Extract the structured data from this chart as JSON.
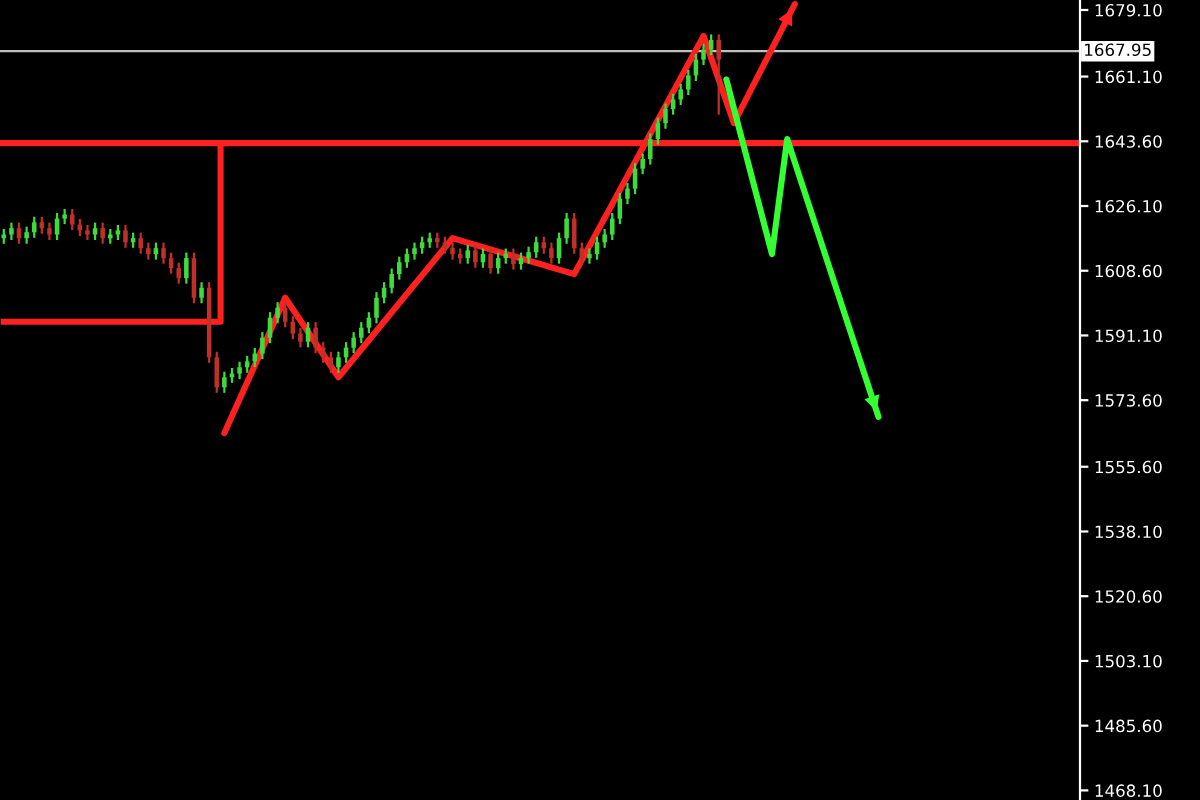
{
  "chart_data": {
    "type": "candlestick",
    "categories": [
      null,
      null,
      null,
      null,
      null,
      null,
      null,
      null,
      null,
      null,
      null,
      null,
      null,
      null,
      null,
      null,
      null,
      null,
      null,
      null,
      null,
      null,
      null,
      null,
      null,
      null,
      null,
      null,
      null,
      null,
      null,
      null,
      null,
      null,
      null,
      null,
      null,
      null,
      null,
      null,
      null,
      null,
      null,
      null,
      null,
      null,
      null,
      null,
      null,
      null,
      null,
      null,
      null,
      null,
      null,
      null,
      null,
      null,
      null,
      null,
      null,
      null,
      null,
      null,
      null,
      null,
      null,
      null,
      null,
      null,
      null,
      null,
      null,
      null,
      null,
      null,
      null,
      null,
      null,
      null,
      null,
      null,
      null,
      null,
      null,
      null,
      null,
      null,
      null,
      null,
      null,
      null,
      null,
      null,
      null,
      null,
      null,
      null,
      null,
      null,
      null,
      null,
      null,
      null,
      null,
      null,
      null,
      null,
      null,
      null,
      null,
      null,
      null,
      null,
      null,
      null,
      null,
      null,
      null,
      null,
      null,
      null,
      null,
      null,
      null,
      null,
      null,
      null,
      null,
      null,
      null,
      null,
      null,
      null,
      null,
      null,
      null,
      null,
      null,
      null,
      null,
      null
    ],
    "ohlc": [
      [
        1617.4,
        1619.9,
        1615.9,
        1618.4
      ],
      [
        1618.4,
        1621.6,
        1616.9,
        1620.1
      ],
      [
        1620.1,
        1621.6,
        1615.9,
        1617.4
      ],
      [
        1617.4,
        1620.5,
        1615.9,
        1619.0
      ],
      [
        1619.0,
        1623.2,
        1617.5,
        1621.7
      ],
      [
        1621.7,
        1623.2,
        1618.6,
        1620.1
      ],
      [
        1620.1,
        1621.6,
        1616.9,
        1618.4
      ],
      [
        1618.4,
        1624.2,
        1616.9,
        1622.7
      ],
      [
        1622.7,
        1625.3,
        1621.2,
        1623.8
      ],
      [
        1623.8,
        1625.3,
        1619.6,
        1621.1
      ],
      [
        1621.1,
        1622.6,
        1618.0,
        1619.5
      ],
      [
        1619.5,
        1621.0,
        1616.9,
        1618.4
      ],
      [
        1618.4,
        1621.6,
        1616.9,
        1620.1
      ],
      [
        1620.1,
        1621.6,
        1615.9,
        1617.4
      ],
      [
        1617.4,
        1619.9,
        1615.9,
        1618.4
      ],
      [
        1618.4,
        1621.0,
        1616.9,
        1619.5
      ],
      [
        1619.5,
        1621.0,
        1614.8,
        1616.3
      ],
      [
        1616.3,
        1618.9,
        1614.8,
        1617.4
      ],
      [
        1617.4,
        1618.9,
        1613.2,
        1614.7
      ],
      [
        1614.7,
        1616.2,
        1611.6,
        1613.1
      ],
      [
        1613.1,
        1616.2,
        1611.6,
        1614.7
      ],
      [
        1614.7,
        1616.2,
        1610.5,
        1612.0
      ],
      [
        1612.0,
        1613.5,
        1607.8,
        1609.3
      ],
      [
        1609.3,
        1610.8,
        1605.1,
        1606.6
      ],
      [
        1606.6,
        1613.5,
        1605.1,
        1612.0
      ],
      [
        1612.0,
        1613.5,
        1599.8,
        1601.3
      ],
      [
        1601.3,
        1605.5,
        1599.8,
        1604.0
      ],
      [
        1604.0,
        1605.5,
        1583.7,
        1585.2
      ],
      [
        1585.2,
        1586.7,
        1575.6,
        1577.1
      ],
      [
        1577.1,
        1581.3,
        1575.6,
        1579.8
      ],
      [
        1579.8,
        1582.3,
        1578.3,
        1580.8
      ],
      [
        1580.8,
        1584.0,
        1579.3,
        1582.5
      ],
      [
        1582.5,
        1585.6,
        1581.0,
        1584.1
      ],
      [
        1584.1,
        1587.7,
        1582.6,
        1586.2
      ],
      [
        1586.2,
        1592.0,
        1584.7,
        1590.5
      ],
      [
        1590.5,
        1597.4,
        1589.0,
        1595.9
      ],
      [
        1595.9,
        1600.1,
        1594.4,
        1598.6
      ],
      [
        1598.6,
        1600.1,
        1593.3,
        1594.8
      ],
      [
        1594.8,
        1596.3,
        1590.1,
        1591.6
      ],
      [
        1591.6,
        1593.1,
        1587.9,
        1589.4
      ],
      [
        1589.4,
        1594.7,
        1587.9,
        1593.2
      ],
      [
        1593.2,
        1594.7,
        1586.3,
        1587.8
      ],
      [
        1587.8,
        1589.3,
        1583.7,
        1585.2
      ],
      [
        1585.2,
        1586.7,
        1581.0,
        1582.5
      ],
      [
        1582.5,
        1586.7,
        1581.0,
        1585.2
      ],
      [
        1585.2,
        1589.3,
        1583.7,
        1587.8
      ],
      [
        1587.8,
        1592.0,
        1586.3,
        1590.5
      ],
      [
        1590.5,
        1594.7,
        1589.0,
        1593.2
      ],
      [
        1593.2,
        1597.4,
        1591.7,
        1595.9
      ],
      [
        1595.9,
        1602.8,
        1594.4,
        1601.3
      ],
      [
        1601.3,
        1605.5,
        1599.8,
        1604.0
      ],
      [
        1604.0,
        1609.2,
        1602.5,
        1607.7
      ],
      [
        1607.7,
        1612.4,
        1606.2,
        1610.9
      ],
      [
        1610.9,
        1614.6,
        1609.4,
        1613.1
      ],
      [
        1613.1,
        1616.2,
        1611.6,
        1614.7
      ],
      [
        1614.7,
        1617.8,
        1613.2,
        1616.3
      ],
      [
        1616.3,
        1618.9,
        1614.8,
        1617.4
      ],
      [
        1617.4,
        1618.9,
        1614.8,
        1616.3
      ],
      [
        1616.3,
        1617.8,
        1613.2,
        1614.7
      ],
      [
        1614.7,
        1616.2,
        1611.6,
        1613.1
      ],
      [
        1613.1,
        1614.6,
        1610.5,
        1612.0
      ],
      [
        1612.0,
        1615.6,
        1610.5,
        1614.1
      ],
      [
        1614.1,
        1615.6,
        1609.4,
        1610.9
      ],
      [
        1610.9,
        1614.6,
        1609.4,
        1613.1
      ],
      [
        1613.1,
        1614.6,
        1607.8,
        1609.3
      ],
      [
        1609.3,
        1613.5,
        1607.8,
        1612.0
      ],
      [
        1612.0,
        1614.6,
        1610.5,
        1613.1
      ],
      [
        1613.1,
        1614.6,
        1608.9,
        1610.4
      ],
      [
        1610.4,
        1613.5,
        1608.9,
        1612.0
      ],
      [
        1612.0,
        1615.1,
        1610.5,
        1613.6
      ],
      [
        1613.6,
        1617.8,
        1612.1,
        1616.3
      ],
      [
        1616.3,
        1617.8,
        1613.2,
        1614.7
      ],
      [
        1614.7,
        1616.2,
        1610.5,
        1612.0
      ],
      [
        1612.0,
        1618.9,
        1610.5,
        1617.4
      ],
      [
        1617.4,
        1624.2,
        1615.9,
        1622.7
      ],
      [
        1622.7,
        1624.2,
        1613.2,
        1614.7
      ],
      [
        1614.7,
        1616.2,
        1610.5,
        1612.0
      ],
      [
        1612.0,
        1614.6,
        1610.5,
        1613.1
      ],
      [
        1613.1,
        1617.8,
        1611.6,
        1616.3
      ],
      [
        1616.3,
        1619.9,
        1614.8,
        1618.4
      ],
      [
        1618.4,
        1624.2,
        1616.9,
        1622.7
      ],
      [
        1622.7,
        1629.6,
        1621.2,
        1628.1
      ],
      [
        1628.1,
        1632.3,
        1626.6,
        1630.8
      ],
      [
        1630.8,
        1637.7,
        1629.3,
        1636.2
      ],
      [
        1636.2,
        1640.3,
        1634.7,
        1638.8
      ],
      [
        1638.8,
        1645.7,
        1637.3,
        1644.2
      ],
      [
        1644.2,
        1650.0,
        1642.7,
        1648.5
      ],
      [
        1648.5,
        1653.8,
        1647.0,
        1652.3
      ],
      [
        1652.3,
        1656.4,
        1650.8,
        1654.9
      ],
      [
        1654.9,
        1659.1,
        1653.4,
        1657.6
      ],
      [
        1657.6,
        1662.9,
        1656.1,
        1661.4
      ],
      [
        1661.4,
        1667.2,
        1659.9,
        1665.7
      ],
      [
        1665.7,
        1669.9,
        1664.2,
        1668.4
      ],
      [
        1668.4,
        1672.5,
        1666.9,
        1671.0
      ],
      [
        1671.0,
        1672.5,
        1650.8,
        1665.7
      ],
      null,
      null,
      null,
      null,
      null,
      null,
      null,
      null,
      null,
      null,
      null,
      null,
      null,
      null,
      null,
      null,
      null,
      null,
      null,
      null,
      null,
      null,
      null,
      null,
      null,
      null,
      null,
      null,
      null,
      null,
      null,
      null,
      null,
      null,
      null,
      null,
      null,
      null,
      null,
      null,
      null,
      null,
      null,
      null,
      null,
      null,
      null
    ],
    "colors": [
      "#3ddc3d",
      "#3ddc3d",
      "#c0302a",
      "#3ddc3d",
      "#3ddc3d",
      "#c0302a",
      "#c0302a",
      "#3ddc3d",
      "#3ddc3d",
      "#c0302a",
      "#c0302a",
      "#c0302a",
      "#3ddc3d",
      "#c0302a",
      "#3ddc3d",
      "#3ddc3d",
      "#c0302a",
      "#3ddc3d",
      "#c0302a",
      "#c0302a",
      "#3ddc3d",
      "#c0302a",
      "#c0302a",
      "#c0302a",
      "#3ddc3d",
      "#c0302a",
      "#3ddc3d",
      "#c0302a",
      "#c0302a",
      "#3ddc3d",
      "#3ddc3d",
      "#3ddc3d",
      "#3ddc3d",
      "#3ddc3d",
      "#3ddc3d",
      "#3ddc3d",
      "#3ddc3d",
      "#c0302a",
      "#c0302a",
      "#c0302a",
      "#3ddc3d",
      "#c0302a",
      "#c0302a",
      "#c0302a",
      "#3ddc3d",
      "#3ddc3d",
      "#3ddc3d",
      "#3ddc3d",
      "#3ddc3d",
      "#3ddc3d",
      "#3ddc3d",
      "#3ddc3d",
      "#3ddc3d",
      "#3ddc3d",
      "#3ddc3d",
      "#3ddc3d",
      "#3ddc3d",
      "#c0302a",
      "#c0302a",
      "#c0302a",
      "#c0302a",
      "#3ddc3d",
      "#c0302a",
      "#3ddc3d",
      "#c0302a",
      "#3ddc3d",
      "#3ddc3d",
      "#c0302a",
      "#3ddc3d",
      "#3ddc3d",
      "#3ddc3d",
      "#c0302a",
      "#c0302a",
      "#3ddc3d",
      "#3ddc3d",
      "#c0302a",
      "#c0302a",
      "#3ddc3d",
      "#3ddc3d",
      "#3ddc3d",
      "#3ddc3d",
      "#3ddc3d",
      "#3ddc3d",
      "#3ddc3d",
      "#3ddc3d",
      "#3ddc3d",
      "#3ddc3d",
      "#3ddc3d",
      "#3ddc3d",
      "#3ddc3d",
      "#3ddc3d",
      "#3ddc3d",
      "#3ddc3d",
      "#3ddc3d",
      "#c0302a",
      null,
      null,
      null,
      null,
      null,
      null,
      null,
      null,
      null,
      null,
      null,
      null,
      null,
      null,
      null,
      null,
      null,
      null,
      null,
      null,
      null,
      null,
      null,
      null,
      null,
      null,
      null,
      null,
      null,
      null,
      null,
      null,
      null,
      null,
      null,
      null,
      null,
      null,
      null,
      null,
      null,
      null,
      null,
      null,
      null,
      null,
      null
    ],
    "series": [
      {
        "type": "step",
        "color": "#ff2020",
        "values": [
          1594.8,
          1594.8,
          1594.8,
          1594.8,
          1594.8,
          1594.8,
          1594.8,
          1594.8,
          1594.8,
          1594.8,
          1594.8,
          1594.8,
          1594.8,
          1594.8,
          1594.8,
          1594.8,
          1594.8,
          1594.8,
          1594.8,
          1594.8,
          1594.8,
          1594.8,
          1594.8,
          1594.8,
          1594.8,
          1594.8,
          1594.8,
          1594.8,
          1594.8,
          1643.1,
          null,
          null,
          null,
          null,
          null,
          null,
          null,
          null,
          null,
          null,
          null,
          null,
          null,
          null,
          null,
          null,
          null,
          null,
          null,
          null,
          null,
          null,
          null,
          null,
          null,
          null,
          null,
          null,
          null,
          null,
          null,
          null,
          null,
          null,
          null,
          null,
          null,
          null,
          null,
          null,
          null,
          null,
          null,
          null,
          null,
          null,
          null,
          null,
          null,
          null,
          null,
          null,
          null,
          null,
          null,
          null,
          null,
          null,
          null,
          null,
          null,
          null,
          null,
          null,
          null,
          null,
          null,
          null,
          null,
          null,
          null,
          null,
          null,
          null,
          null,
          null,
          null,
          null,
          null,
          null,
          null,
          null,
          null,
          null,
          null,
          null,
          null,
          null,
          null,
          null,
          null,
          null,
          null,
          null,
          null,
          null,
          null,
          null,
          null,
          null,
          null,
          null,
          null,
          null,
          null,
          null,
          null,
          null,
          null,
          null,
          null,
          null
        ]
      },
      {
        "type": "line",
        "color": "#ff2020",
        "values": [
          null,
          null,
          null,
          null,
          null,
          null,
          null,
          null,
          null,
          null,
          null,
          null,
          null,
          null,
          null,
          null,
          null,
          null,
          null,
          null,
          null,
          null,
          null,
          null,
          null,
          null,
          null,
          null,
          null,
          1564.7,
          null,
          null,
          null,
          null,
          null,
          null,
          null,
          1601.3,
          null,
          null,
          null,
          null,
          null,
          null,
          1579.8,
          null,
          null,
          null,
          null,
          null,
          null,
          null,
          null,
          null,
          null,
          null,
          null,
          null,
          null,
          1617.4,
          null,
          null,
          null,
          null,
          null,
          null,
          null,
          null,
          null,
          null,
          null,
          null,
          null,
          null,
          null,
          1607.7,
          null,
          null,
          null,
          null,
          null,
          null,
          null,
          null,
          null,
          null,
          null,
          null,
          null,
          null,
          null,
          null,
          1672.1,
          null,
          null,
          null,
          1648.5,
          null,
          null,
          null,
          null,
          null,
          null,
          null,
          1680.7,
          null,
          null,
          null,
          null,
          null,
          null,
          null,
          null,
          null,
          null,
          null,
          null,
          null,
          null,
          null,
          null,
          null,
          null,
          null,
          null,
          null,
          null,
          null,
          null,
          null,
          null,
          null,
          null,
          null,
          null,
          null,
          null,
          null,
          null,
          null,
          null,
          null
        ]
      },
      {
        "type": "line",
        "color": "#33ff33",
        "values": [
          null,
          null,
          null,
          null,
          null,
          null,
          null,
          null,
          null,
          null,
          null,
          null,
          null,
          null,
          null,
          null,
          null,
          null,
          null,
          null,
          null,
          null,
          null,
          null,
          null,
          null,
          null,
          null,
          null,
          null,
          null,
          null,
          null,
          null,
          null,
          null,
          null,
          null,
          null,
          null,
          null,
          null,
          null,
          null,
          null,
          null,
          null,
          null,
          null,
          null,
          null,
          null,
          null,
          null,
          null,
          null,
          null,
          null,
          null,
          null,
          null,
          null,
          null,
          null,
          null,
          null,
          null,
          null,
          null,
          null,
          null,
          null,
          null,
          null,
          null,
          null,
          null,
          null,
          null,
          null,
          null,
          null,
          null,
          null,
          null,
          null,
          null,
          null,
          null,
          null,
          null,
          null,
          null,
          null,
          null,
          1660.3,
          null,
          null,
          null,
          null,
          null,
          1613.1,
          null,
          1644.2,
          null,
          null,
          null,
          null,
          null,
          null,
          null,
          null,
          null,
          null,
          null,
          1569.1,
          null,
          null,
          null,
          null,
          null,
          null,
          null,
          null,
          null,
          null,
          null,
          null,
          null,
          null,
          null,
          null,
          null,
          null,
          null,
          null,
          null,
          null,
          null,
          null,
          null,
          null
        ]
      }
    ],
    "ref_lines": [
      {
        "axis": "y",
        "value": 1643.1,
        "color": "#ff2020"
      },
      {
        "axis": "y",
        "value": 1667.95,
        "label": "1667.95",
        "color": "#c0c0c0"
      }
    ],
    "ylim": [
      1465.5,
      1681.8
    ],
    "yticks": [
      {
        "value": 1679.1,
        "label": "1679.10"
      },
      {
        "value": 1661.1,
        "label": "1661.10"
      },
      {
        "value": 1643.6,
        "label": "1643.60"
      },
      {
        "value": 1626.1,
        "label": "1626.10"
      },
      {
        "value": 1608.6,
        "label": "1608.60"
      },
      {
        "value": 1591.1,
        "label": "1591.10"
      },
      {
        "value": 1573.6,
        "label": "1573.60"
      },
      {
        "value": 1555.6,
        "label": "1555.60"
      },
      {
        "value": 1538.1,
        "label": "1538.10"
      },
      {
        "value": 1520.6,
        "label": "1520.60"
      },
      {
        "value": 1503.1,
        "label": "1503.10"
      },
      {
        "value": 1485.6,
        "label": "1485.60"
      },
      {
        "value": 1468.1,
        "label": "1468.10"
      }
    ],
    "tick_labels": "y"
  }
}
